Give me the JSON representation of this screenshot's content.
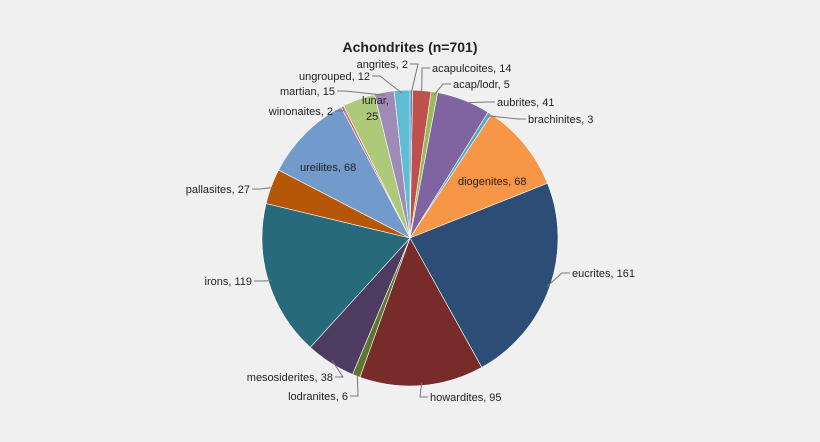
{
  "chart_data": {
    "type": "pie",
    "title": "Achondrites (n=701)",
    "start": "top, clockwise",
    "slices": [
      {
        "label": "angrites",
        "value": 2,
        "color": "#4f81bd"
      },
      {
        "label": "acapulcoites",
        "value": 14,
        "color": "#c0504d"
      },
      {
        "label": "acap/lodr",
        "value": 5,
        "color": "#9bbb59"
      },
      {
        "label": "aubrites",
        "value": 41,
        "color": "#8064a2"
      },
      {
        "label": "brachinites",
        "value": 3,
        "color": "#4bacc6"
      },
      {
        "label": "diogenites",
        "value": 68,
        "color": "#f79646"
      },
      {
        "label": "eucrites",
        "value": 161,
        "color": "#2c4d75"
      },
      {
        "label": "howardites",
        "value": 95,
        "color": "#772c2a"
      },
      {
        "label": "lodranites",
        "value": 6,
        "color": "#5f7530"
      },
      {
        "label": "mesosiderites",
        "value": 38,
        "color": "#4d3b62"
      },
      {
        "label": "irons",
        "value": 119,
        "color": "#276a7c"
      },
      {
        "label": "pallasites",
        "value": 27,
        "color": "#b65708"
      },
      {
        "label": "ureilites",
        "value": 68,
        "color": "#729aca"
      },
      {
        "label": "winonaites",
        "value": 2,
        "color": "#cd7371"
      },
      {
        "label": "lunar",
        "value": 25,
        "color": "#afc97a"
      },
      {
        "label": "martian",
        "value": 15,
        "color": "#a08bb8"
      },
      {
        "label": "ungrouped",
        "value": 12,
        "color": "#5fbcd3"
      }
    ]
  }
}
